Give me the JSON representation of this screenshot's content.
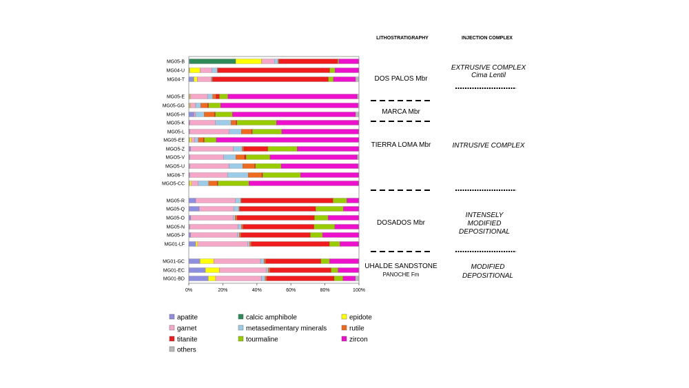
{
  "chart_data": {
    "type": "bar",
    "orientation": "horizontal",
    "stacked": "percent",
    "xlim": [
      0,
      100
    ],
    "x_ticks": [
      "0%",
      "20%",
      "40%",
      "60%",
      "80%",
      "100%"
    ],
    "grid": false,
    "legend_placement": "bottom",
    "categories": [
      "MG05-B",
      "MG04-U",
      "MG04-T",
      "MG05-E",
      "MG05-GG",
      "MG05-H",
      "MG05-K",
      "MG05-L",
      "MG05-EE",
      "MGO5-Z",
      "MGO5-V",
      "MGO5-U",
      "MG06-T",
      "MGO5-CC",
      "MG05-R",
      "MG05-Q",
      "MG05-O",
      "MG05-N",
      "MG05-P",
      "MG01-LF",
      "MG01-GC",
      "MG01-EC",
      "MG01-BD"
    ],
    "series": [
      {
        "name": "apatite",
        "color": "#8f8fe0",
        "values": [
          0.5,
          0.5,
          3,
          0.5,
          0.5,
          3,
          0.5,
          0.5,
          0.5,
          1,
          0.5,
          0.5,
          0.5,
          0.5,
          4,
          6,
          1,
          0.5,
          1,
          4,
          6.5,
          9.5,
          11
        ]
      },
      {
        "name": "calcic amphibole",
        "color": "#2e8b57",
        "values": [
          25,
          0,
          0,
          0,
          0,
          0,
          0,
          0,
          0,
          0,
          0,
          0,
          0,
          0,
          0,
          0,
          0,
          0,
          0,
          0,
          0,
          0,
          0
        ]
      },
      {
        "name": "epidote",
        "color": "#ffff00",
        "values": [
          14,
          6,
          2,
          0.5,
          0.5,
          0,
          0,
          0,
          1,
          0,
          0,
          0,
          0,
          1,
          0,
          0,
          0,
          0,
          0,
          1,
          8,
          8,
          4
        ]
      },
      {
        "name": "garnet",
        "color": "#f4a7c7",
        "values": [
          7,
          7,
          8,
          10,
          3,
          1,
          15,
          23,
          2,
          25,
          20,
          23,
          22,
          4,
          23,
          20,
          22,
          28,
          27,
          29,
          27,
          27,
          26
        ]
      },
      {
        "name": "metasedimentary minerals",
        "color": "#9ccbe8",
        "values": [
          2,
          3,
          0.5,
          3,
          3,
          5,
          9,
          7,
          2,
          5,
          7,
          8,
          12,
          6,
          3,
          3,
          1,
          2,
          1,
          1,
          2,
          1,
          2
        ]
      },
      {
        "name": "rutile",
        "color": "#ee6a1e",
        "values": [
          0.5,
          0.5,
          0.5,
          2,
          4,
          6,
          3,
          6,
          3,
          1,
          5,
          7,
          8,
          5,
          0.5,
          0.5,
          1,
          1,
          1,
          1,
          1,
          1,
          1
        ]
      },
      {
        "name": "titanite",
        "color": "#ee1c1c",
        "values": [
          32,
          65,
          68,
          2,
          0.5,
          0.5,
          0.5,
          0.5,
          0.5,
          14,
          1,
          0.5,
          0.5,
          0.5,
          53,
          44,
          40,
          41,
          40,
          45,
          32,
          35,
          38
        ]
      },
      {
        "name": "tourmaline",
        "color": "#99cc00",
        "values": [
          0.5,
          3,
          3,
          5,
          7,
          10,
          23,
          17,
          7,
          17,
          14,
          15,
          22,
          18,
          8,
          16,
          7,
          12,
          7,
          6,
          5,
          4,
          5
        ]
      },
      {
        "name": "zircon",
        "color": "#ee11cc",
        "values": [
          11,
          14,
          13,
          76,
          80,
          72,
          48,
          45,
          83,
          36,
          51,
          45,
          34,
          64,
          7,
          9,
          16,
          14,
          21,
          11,
          17,
          12,
          7
        ]
      },
      {
        "name": "others",
        "color": "#b8b8b8",
        "values": [
          0,
          0,
          2,
          1,
          0.5,
          2,
          0,
          0,
          0,
          0,
          1,
          0.5,
          0,
          0,
          0,
          0,
          0,
          0,
          0,
          0,
          0,
          0,
          2
        ]
      }
    ]
  },
  "headers": {
    "lithostratigraphy": "LITHOSTRATIGRAPHY",
    "injection_complex": "INJECTION COMPLEX"
  },
  "lithostratigraphy_units": [
    {
      "name": "DOS PALOS Mbr",
      "sub": ""
    },
    {
      "name": "MARCA Mbr",
      "sub": ""
    },
    {
      "name": "TIERRA LOMA Mbr",
      "sub": ""
    },
    {
      "name": "DOSADOS Mbr",
      "sub": ""
    },
    {
      "name": "UHALDE SANDSTONE",
      "sub": "PANOCHE Fm"
    }
  ],
  "injection_units": [
    {
      "lines": [
        "EXTRUSIVE COMPLEX",
        "Cima Lentil"
      ]
    },
    {
      "lines": [
        "INTRUSIVE COMPLEX"
      ]
    },
    {
      "lines": [
        "INTENSELY",
        "MODIFIED",
        "DEPOSITIONAL"
      ]
    },
    {
      "lines": [
        "MODIFIED",
        "DEPOSITIONAL"
      ]
    }
  ]
}
